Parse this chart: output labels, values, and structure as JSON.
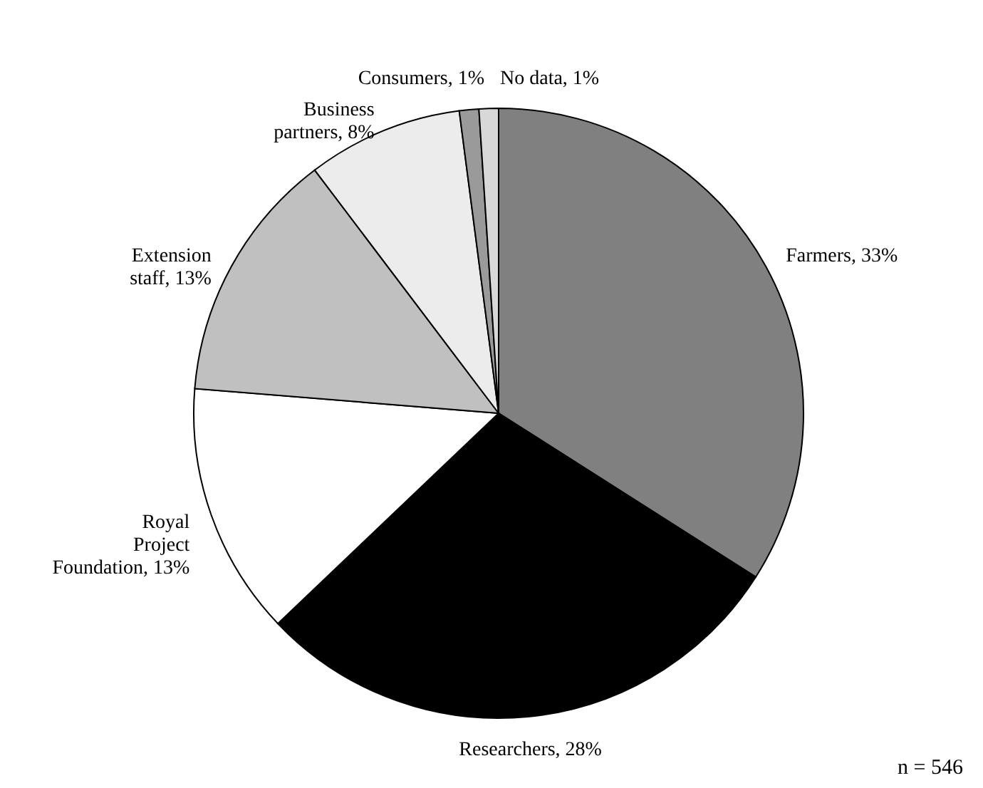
{
  "chart_data": {
    "type": "pie",
    "categories": [
      "Farmers",
      "Researchers",
      "Royal Project Foundation",
      "Extension staff",
      "Business partners",
      "Consumers",
      "No data"
    ],
    "values": [
      33,
      28,
      13,
      13,
      8,
      1,
      1
    ],
    "value_labels": [
      "33%",
      "28%",
      "13%",
      "13%",
      "8%",
      "1%",
      "1%"
    ],
    "colors": [
      "#808080",
      "#000000",
      "#ffffff",
      "#c0c0c0",
      "#ececec",
      "#9a9a9a",
      "#d8d8d8"
    ],
    "annotations": [
      "n = 546"
    ]
  }
}
